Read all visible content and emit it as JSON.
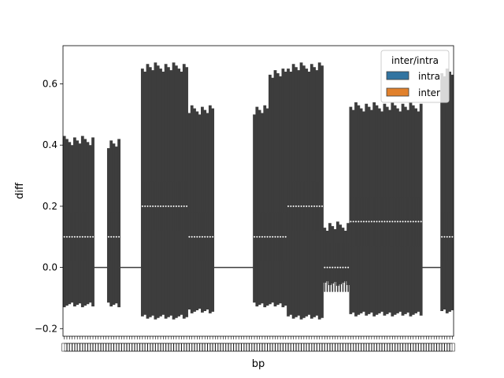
{
  "chart_data": {
    "type": "violin",
    "title": "",
    "xlabel": "bp",
    "ylabel": "diff",
    "ylim": [
      -0.225,
      0.725
    ],
    "yticks": [
      -0.2,
      0.0,
      0.2,
      0.4,
      0.6
    ],
    "ytick_labels": [
      "−0.2",
      "0.0",
      "0.2",
      "0.4",
      "0.6"
    ],
    "legend": {
      "title": "inter/intra",
      "placement": "top-right",
      "entries": [
        {
          "label": "intra",
          "color": "#3274a1"
        },
        {
          "label": "inter",
          "color": "#e1812c"
        }
      ]
    },
    "category_count": 150,
    "zero_line": 0.0,
    "series": [
      {
        "name": "intra",
        "color": "#3274a1",
        "segments": [
          {
            "from": 0,
            "to": 12,
            "min": -0.13,
            "max": 0.43,
            "median": 0.1
          },
          {
            "from": 17,
            "to": 22,
            "min": -0.13,
            "max": 0.42,
            "median": 0.1
          },
          {
            "from": 30,
            "to": 48,
            "min": -0.17,
            "max": 0.67,
            "median": 0.2
          },
          {
            "from": 48,
            "to": 58,
            "min": -0.15,
            "max": 0.53,
            "median": 0.1
          },
          {
            "from": 73,
            "to": 79,
            "min": -0.13,
            "max": 0.53,
            "median": 0.1
          },
          {
            "from": 79,
            "to": 86,
            "min": -0.13,
            "max": 0.65,
            "median": 0.1
          },
          {
            "from": 86,
            "to": 100,
            "min": -0.17,
            "max": 0.67,
            "median": 0.2
          },
          {
            "from": 100,
            "to": 110,
            "min": -0.06,
            "max": 0.15,
            "median": 0.0
          },
          {
            "from": 110,
            "to": 138,
            "min": -0.16,
            "max": 0.54,
            "median": 0.15
          },
          {
            "from": 145,
            "to": 150,
            "min": -0.15,
            "max": 0.65,
            "median": 0.1
          }
        ]
      }
    ]
  }
}
